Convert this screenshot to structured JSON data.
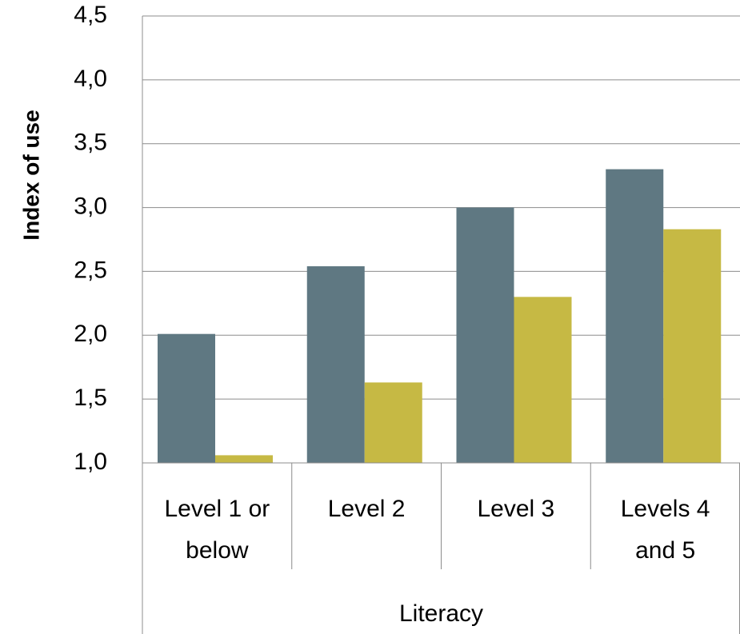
{
  "chart_data": {
    "type": "bar",
    "categories": [
      [
        "Level 1 or",
        "below"
      ],
      [
        "Level 2"
      ],
      [
        "Level 3"
      ],
      [
        "Levels 4",
        "and 5"
      ]
    ],
    "group_label": "Literacy",
    "ylabel": "Index of use",
    "ylim": [
      1.0,
      4.5
    ],
    "yticks": [
      "1,0",
      "1,5",
      "2,0",
      "2,5",
      "3,0",
      "3,5",
      "4,0",
      "4,5"
    ],
    "ytick_values": [
      1.0,
      1.5,
      2.0,
      2.5,
      3.0,
      3.5,
      4.0,
      4.5
    ],
    "grid": true,
    "legend": "none",
    "series": [
      {
        "color": "#5f7882",
        "values": [
          2.01,
          2.54,
          3.0,
          3.3
        ]
      },
      {
        "color": "#c6b944",
        "values": [
          1.06,
          1.63,
          2.3,
          2.83
        ]
      }
    ]
  }
}
